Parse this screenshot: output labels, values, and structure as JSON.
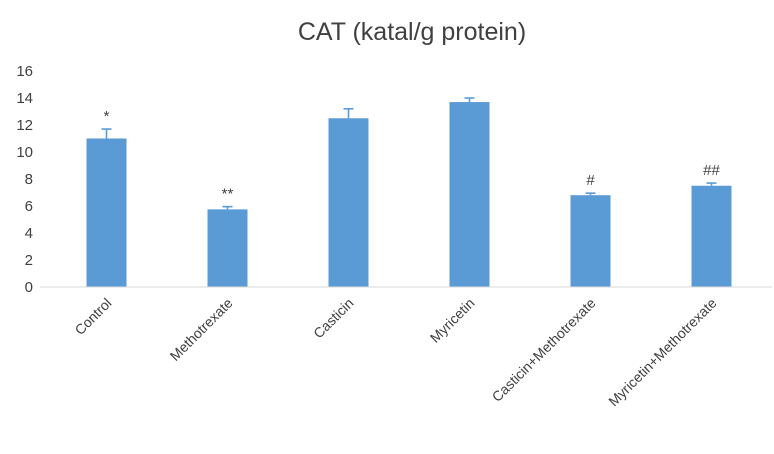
{
  "chart_data": {
    "type": "bar",
    "title": "CAT (katal/g protein)",
    "categories": [
      "Control",
      "Methotrexate",
      "Casticin",
      "Myricetin",
      "Casticin+Methotrexate",
      "Myricetin+Methotrexate"
    ],
    "values": [
      11.0,
      5.75,
      12.5,
      13.7,
      6.8,
      7.5
    ],
    "errors": [
      0.7,
      0.2,
      0.7,
      0.3,
      0.15,
      0.2
    ],
    "annotations": [
      "*",
      "**",
      "",
      "",
      "#",
      "##"
    ],
    "yticks": [
      0,
      2,
      4,
      6,
      8,
      10,
      12,
      14,
      16
    ],
    "ylim": [
      0,
      16
    ],
    "grid": false,
    "legend": "none",
    "bar_color": "#5B9BD5",
    "axis_color": "#D9D9D9",
    "text_color": "#404040"
  }
}
